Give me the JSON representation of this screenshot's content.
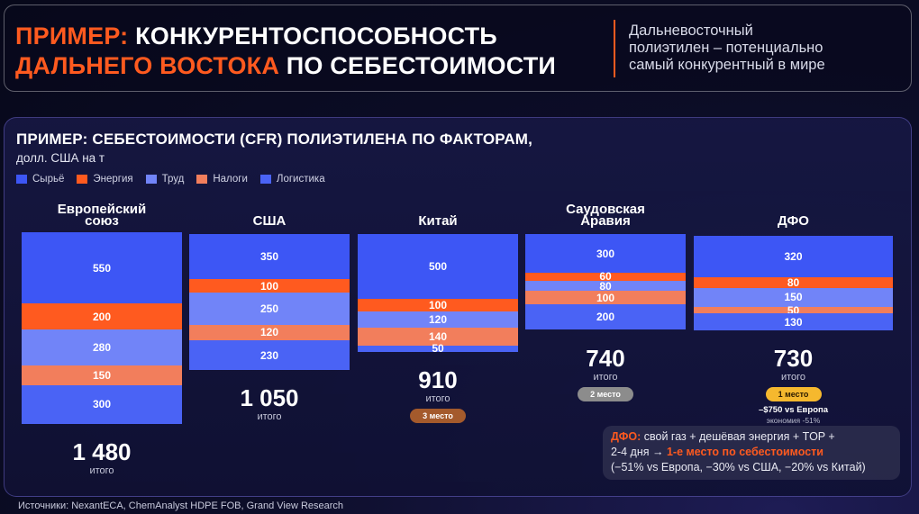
{
  "header": {
    "accent1": "ПРИМЕР:",
    "rest1": " КОНКУРЕНТОСПОСОБНОСТЬ",
    "accent2": "ДАЛЬНЕГО ВОСТОКА",
    "rest2": " ПО СЕБЕСТОИМОСТИ",
    "subtitle_lines": [
      "Дальневосточный",
      "полиэтилен – потенциально",
      "самый конкурентный в мире"
    ]
  },
  "colors": {
    "accent": "#ff5a1f",
    "raw": "#3d56f5",
    "energy": "#ff5a1f",
    "labor": "#7184f8",
    "taxes": "#f27e5c",
    "logistics": "#4a63f5",
    "badge_gold": "#f5b82e",
    "badge_gray": "#8c8c8c",
    "badge_brown": "#a45a2c"
  },
  "chart_data": {
    "type": "bar",
    "stacked": true,
    "title": "ПРИМЕР: СЕБЕСТОИМОСТИ (CFR) ПОЛИЭТИЛЕНА ПО ФАКТОРАМ,",
    "unit": "долл. США на т",
    "categories": [
      "Европейский союз",
      "США",
      "Китай",
      "Саудовская Аравия",
      "ДФО"
    ],
    "category_lines": [
      [
        "Европейский",
        "союз"
      ],
      [
        "США"
      ],
      [
        "Китай"
      ],
      [
        "Саудовская",
        "Аравия"
      ],
      [
        "ДФО"
      ]
    ],
    "series": [
      {
        "name": "Сырьё",
        "color_key": "raw",
        "values": [
          550,
          350,
          500,
          300,
          320
        ]
      },
      {
        "name": "Энергия",
        "color_key": "energy",
        "values": [
          200,
          100,
          100,
          60,
          80
        ]
      },
      {
        "name": "Труд",
        "color_key": "labor",
        "values": [
          280,
          250,
          120,
          80,
          150
        ]
      },
      {
        "name": "Налоги",
        "color_key": "taxes",
        "values": [
          150,
          120,
          140,
          100,
          50
        ]
      },
      {
        "name": "Логистика",
        "color_key": "logistics",
        "values": [
          300,
          230,
          50,
          200,
          130
        ]
      }
    ],
    "totals": [
      "1 480",
      "1 050",
      "910",
      "740",
      "730"
    ],
    "total_label": "итого",
    "ranks": [
      "",
      "",
      "3 место",
      "2 место",
      "1 место"
    ],
    "rank_color_keys": [
      "",
      "",
      "badge_brown",
      "badge_gray",
      "badge_gold"
    ],
    "notes": [
      "",
      "",
      "",
      "",
      "–$750 vs Европа"
    ],
    "subnotes": [
      "",
      "",
      "",
      "",
      "экономия -51%"
    ],
    "ylim": [
      0,
      1480
    ],
    "legend_position": "top-left"
  },
  "callout": {
    "label": "ДФО:",
    "text1": " свой газ + дешёвая энергия + TOP +",
    "text2": "2-4 дня → ",
    "highlight": "1-е место по себестоимости",
    "text3": "(−51% vs Европа, −30% vs США, −20% vs Китай)"
  },
  "source": "Источники: NexantECA, ChemAnalyst HDPE FOB, Grand View Research"
}
